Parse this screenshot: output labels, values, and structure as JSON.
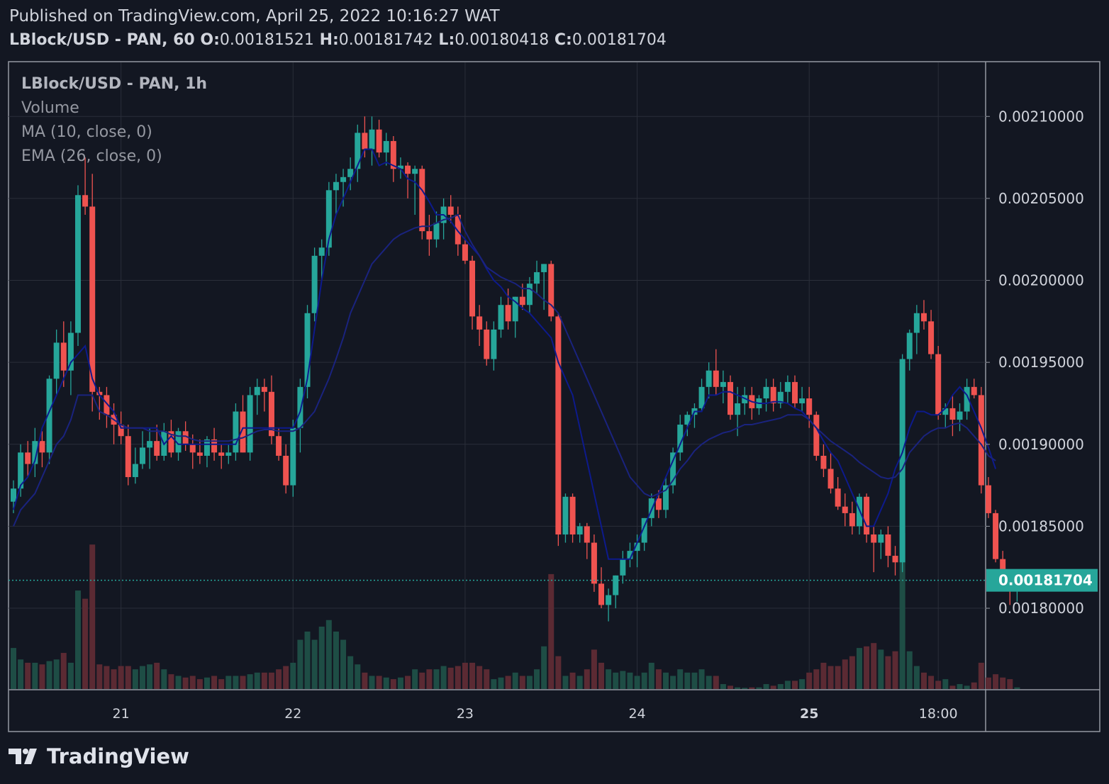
{
  "header": {
    "published": "Published on TradingView.com, April 25, 2022 10:16:27 WAT",
    "symbol": "LBlock/USD - PAN, 60",
    "o_label": "O:",
    "o_value": "0.00181521",
    "h_label": "H:",
    "h_value": "0.00181742",
    "l_label": "L:",
    "l_value": "0.00180418",
    "c_label": "C:",
    "c_value": "0.00181704"
  },
  "legend": {
    "title": "LBlock/USD - PAN, 1h",
    "volume": "Volume",
    "ma": "MA (10, close, 0)",
    "ema": "EMA (26, close, 0)"
  },
  "footer": {
    "brand": "TradingView"
  },
  "colors": {
    "background": "#131722",
    "grid": "#2a2e39",
    "up": "#26a69a",
    "down": "#ef5350",
    "up_volume": "#1e4d45",
    "down_volume": "#5b2a33",
    "ma_line": "#0d1a8c",
    "ema_line": "#1a237e",
    "last_price": "#26a69a",
    "text": "#d1d4dc"
  },
  "chart_data": {
    "type": "candlestick",
    "interval": "1h",
    "y_axis": {
      "ylim": [
        0.001765,
        0.00212
      ],
      "ticks": [
        "0.00210000",
        "0.00205000",
        "0.00200000",
        "0.00195000",
        "0.00190000",
        "0.00185000",
        "0.00180000"
      ],
      "tick_values": [
        0.0021,
        0.00205,
        0.002,
        0.00195,
        0.0019,
        0.00185,
        0.0018
      ]
    },
    "x_axis": {
      "start_hour": 0,
      "ticks": [
        {
          "label": "21",
          "hour": 15,
          "bold": false
        },
        {
          "label": "22",
          "hour": 39,
          "bold": false
        },
        {
          "label": "23",
          "hour": 63,
          "bold": false
        },
        {
          "label": "24",
          "hour": 87,
          "bold": false
        },
        {
          "label": "25",
          "hour": 111,
          "bold": true
        },
        {
          "label": "18:00",
          "hour": 129,
          "bold": false
        }
      ]
    },
    "last_price": "0.00181704",
    "last_price_value": 0.00181704,
    "grid": true,
    "ohlc": [
      [
        0.001865,
        0.001878,
        0.001858,
        0.001873
      ],
      [
        0.001873,
        0.0019,
        0.001868,
        0.001895
      ],
      [
        0.001895,
        0.001902,
        0.00188,
        0.001888
      ],
      [
        0.001888,
        0.00191,
        0.00188,
        0.001902
      ],
      [
        0.001902,
        0.001908,
        0.001886,
        0.001895
      ],
      [
        0.001895,
        0.001942,
        0.001888,
        0.00194
      ],
      [
        0.00194,
        0.00197,
        0.00193,
        0.001962
      ],
      [
        0.001962,
        0.001975,
        0.001935,
        0.001945
      ],
      [
        0.001945,
        0.001975,
        0.00193,
        0.001968
      ],
      [
        0.001968,
        0.002058,
        0.00196,
        0.002052
      ],
      [
        0.002052,
        0.002075,
        0.00204,
        0.002045
      ],
      [
        0.002045,
        0.002065,
        0.00192,
        0.001932
      ],
      [
        0.001932,
        0.001935,
        0.001915,
        0.00193
      ],
      [
        0.00193,
        0.001935,
        0.00191,
        0.001918
      ],
      [
        0.001918,
        0.001925,
        0.0019,
        0.001912
      ],
      [
        0.001912,
        0.00192,
        0.0019,
        0.001905
      ],
      [
        0.001905,
        0.001912,
        0.001875,
        0.00188
      ],
      [
        0.00188,
        0.001898,
        0.001876,
        0.001888
      ],
      [
        0.001888,
        0.001908,
        0.001885,
        0.001898
      ],
      [
        0.001898,
        0.00191,
        0.001885,
        0.001902
      ],
      [
        0.001902,
        0.001912,
        0.00189,
        0.001893
      ],
      [
        0.001893,
        0.001913,
        0.00189,
        0.001908
      ],
      [
        0.001908,
        0.001915,
        0.001892,
        0.001895
      ],
      [
        0.001895,
        0.00191,
        0.00189,
        0.001908
      ],
      [
        0.001908,
        0.001914,
        0.001896,
        0.0019
      ],
      [
        0.0019,
        0.001906,
        0.001885,
        0.001895
      ],
      [
        0.001895,
        0.001903,
        0.001888,
        0.001893
      ],
      [
        0.001893,
        0.001905,
        0.001886,
        0.001903
      ],
      [
        0.001903,
        0.00191,
        0.00189,
        0.001895
      ],
      [
        0.001895,
        0.0019,
        0.001885,
        0.001893
      ],
      [
        0.001893,
        0.0019,
        0.001888,
        0.001895
      ],
      [
        0.001895,
        0.001925,
        0.00189,
        0.00192
      ],
      [
        0.00192,
        0.00193,
        0.001895,
        0.001895
      ],
      [
        0.001895,
        0.001935,
        0.00189,
        0.00193
      ],
      [
        0.00193,
        0.00194,
        0.001918,
        0.001935
      ],
      [
        0.001935,
        0.00194,
        0.00192,
        0.001932
      ],
      [
        0.001932,
        0.001942,
        0.0019,
        0.001905
      ],
      [
        0.001905,
        0.00191,
        0.00189,
        0.001893
      ],
      [
        0.001893,
        0.0019,
        0.00187,
        0.001875
      ],
      [
        0.001875,
        0.001915,
        0.001868,
        0.00191
      ],
      [
        0.00191,
        0.00194,
        0.001895,
        0.001935
      ],
      [
        0.001935,
        0.001985,
        0.001928,
        0.00198
      ],
      [
        0.00198,
        0.00202,
        0.001975,
        0.002015
      ],
      [
        0.002015,
        0.002025,
        0.002,
        0.00202
      ],
      [
        0.00202,
        0.00206,
        0.002015,
        0.002055
      ],
      [
        0.002055,
        0.002065,
        0.00204,
        0.00206
      ],
      [
        0.00206,
        0.002068,
        0.002045,
        0.002063
      ],
      [
        0.002063,
        0.002075,
        0.002055,
        0.002068
      ],
      [
        0.002068,
        0.002095,
        0.00206,
        0.00209
      ],
      [
        0.00209,
        0.0021,
        0.002075,
        0.00208
      ],
      [
        0.00208,
        0.0021,
        0.00207,
        0.002092
      ],
      [
        0.002092,
        0.002098,
        0.002075,
        0.002078
      ],
      [
        0.002078,
        0.00209,
        0.00207,
        0.002085
      ],
      [
        0.002085,
        0.002088,
        0.00206,
        0.002068
      ],
      [
        0.002068,
        0.002075,
        0.002062,
        0.00207
      ],
      [
        0.00207,
        0.002072,
        0.00205,
        0.002065
      ],
      [
        0.002065,
        0.00207,
        0.00204,
        0.002068
      ],
      [
        0.002068,
        0.00207,
        0.002025,
        0.00203
      ],
      [
        0.00203,
        0.00204,
        0.002015,
        0.002025
      ],
      [
        0.002025,
        0.002042,
        0.00202,
        0.002035
      ],
      [
        0.002035,
        0.00205,
        0.002025,
        0.002045
      ],
      [
        0.002045,
        0.002052,
        0.002035,
        0.00204
      ],
      [
        0.00204,
        0.002045,
        0.002015,
        0.002022
      ],
      [
        0.002022,
        0.002025,
        0.00201,
        0.002012
      ],
      [
        0.002012,
        0.002015,
        0.00197,
        0.001978
      ],
      [
        0.001978,
        0.001985,
        0.00196,
        0.00197
      ],
      [
        0.00197,
        0.001975,
        0.001948,
        0.001952
      ],
      [
        0.001952,
        0.001975,
        0.001945,
        0.00197
      ],
      [
        0.00197,
        0.00199,
        0.001965,
        0.001985
      ],
      [
        0.001985,
        0.001995,
        0.00197,
        0.001975
      ],
      [
        0.001975,
        0.00199,
        0.001965,
        0.00199
      ],
      [
        0.00199,
        0.001998,
        0.001982,
        0.001985
      ],
      [
        0.001985,
        0.002002,
        0.00198,
        0.001998
      ],
      [
        0.001998,
        0.002012,
        0.001992,
        0.002005
      ],
      [
        0.002005,
        0.00201,
        0.001982,
        0.00201
      ],
      [
        0.00201,
        0.002012,
        0.001975,
        0.001978
      ],
      [
        0.001978,
        0.00198,
        0.001838,
        0.001845
      ],
      [
        0.001845,
        0.00187,
        0.00184,
        0.001868
      ],
      [
        0.001868,
        0.00187,
        0.00184,
        0.001845
      ],
      [
        0.001845,
        0.001852,
        0.00184,
        0.00185
      ],
      [
        0.00185,
        0.001852,
        0.00183,
        0.00184
      ],
      [
        0.00184,
        0.001845,
        0.00181,
        0.001815
      ],
      [
        0.001815,
        0.001825,
        0.0018,
        0.001802
      ],
      [
        0.001802,
        0.001812,
        0.001792,
        0.001808
      ],
      [
        0.001808,
        0.00182,
        0.0018,
        0.00182
      ],
      [
        0.00182,
        0.001835,
        0.001815,
        0.00183
      ],
      [
        0.00183,
        0.00184,
        0.001825,
        0.001835
      ],
      [
        0.001835,
        0.001845,
        0.001825,
        0.00184
      ],
      [
        0.00184,
        0.001855,
        0.001835,
        0.001855
      ],
      [
        0.001855,
        0.00187,
        0.00185,
        0.001867
      ],
      [
        0.001867,
        0.001872,
        0.001855,
        0.00186
      ],
      [
        0.00186,
        0.00188,
        0.001855,
        0.001875
      ],
      [
        0.001875,
        0.001898,
        0.00187,
        0.001895
      ],
      [
        0.001895,
        0.001918,
        0.00189,
        0.001912
      ],
      [
        0.001912,
        0.00192,
        0.001905,
        0.001918
      ],
      [
        0.001918,
        0.001925,
        0.00191,
        0.001922
      ],
      [
        0.001922,
        0.00194,
        0.00192,
        0.001935
      ],
      [
        0.001935,
        0.00195,
        0.001928,
        0.001945
      ],
      [
        0.001945,
        0.001958,
        0.00193,
        0.001935
      ],
      [
        0.001935,
        0.001945,
        0.001925,
        0.001938
      ],
      [
        0.001938,
        0.001942,
        0.001915,
        0.001918
      ],
      [
        0.001918,
        0.001935,
        0.001905,
        0.001925
      ],
      [
        0.001925,
        0.001935,
        0.001918,
        0.00193
      ],
      [
        0.00193,
        0.001935,
        0.001915,
        0.001922
      ],
      [
        0.001922,
        0.00193,
        0.001918,
        0.001928
      ],
      [
        0.001928,
        0.00194,
        0.00192,
        0.001935
      ],
      [
        0.001935,
        0.00194,
        0.00192,
        0.001925
      ],
      [
        0.001925,
        0.001938,
        0.001922,
        0.001932
      ],
      [
        0.001932,
        0.001942,
        0.001925,
        0.001938
      ],
      [
        0.001938,
        0.001942,
        0.001922,
        0.001925
      ],
      [
        0.001925,
        0.001935,
        0.00192,
        0.001928
      ],
      [
        0.001928,
        0.001935,
        0.00191,
        0.001918
      ],
      [
        0.001918,
        0.00192,
        0.00189,
        0.001893
      ],
      [
        0.001893,
        0.0019,
        0.00188,
        0.001885
      ],
      [
        0.001885,
        0.001895,
        0.00187,
        0.001873
      ],
      [
        0.001873,
        0.00188,
        0.00186,
        0.001862
      ],
      [
        0.001862,
        0.00187,
        0.00185,
        0.001858
      ],
      [
        0.001858,
        0.001865,
        0.001845,
        0.00185
      ],
      [
        0.00185,
        0.00187,
        0.001845,
        0.001868
      ],
      [
        0.001868,
        0.00187,
        0.00184,
        0.001845
      ],
      [
        0.001845,
        0.00185,
        0.001822,
        0.00184
      ],
      [
        0.00184,
        0.001848,
        0.00183,
        0.001845
      ],
      [
        0.001845,
        0.00185,
        0.001825,
        0.001832
      ],
      [
        0.001832,
        0.001838,
        0.00182,
        0.001828
      ],
      [
        0.001828,
        0.001955,
        0.001822,
        0.001952
      ],
      [
        0.001952,
        0.00197,
        0.001945,
        0.001968
      ],
      [
        0.001968,
        0.001985,
        0.001955,
        0.00198
      ],
      [
        0.00198,
        0.001988,
        0.00197,
        0.001975
      ],
      [
        0.001975,
        0.001982,
        0.001952,
        0.001955
      ],
      [
        0.001955,
        0.00196,
        0.001915,
        0.001918
      ],
      [
        0.001918,
        0.001925,
        0.00191,
        0.001922
      ],
      [
        0.001922,
        0.00193,
        0.001905,
        0.001915
      ],
      [
        0.001915,
        0.001925,
        0.001908,
        0.00192
      ],
      [
        0.00192,
        0.00194,
        0.001915,
        0.001935
      ],
      [
        0.001935,
        0.00194,
        0.001928,
        0.00193
      ],
      [
        0.00193,
        0.001935,
        0.00187,
        0.001875
      ],
      [
        0.001875,
        0.00188,
        0.001855,
        0.001858
      ],
      [
        0.001858,
        0.00186,
        0.001828,
        0.00183
      ],
      [
        0.00183,
        0.001835,
        0.001812,
        0.001817
      ],
      [
        0.001817,
        0.001818,
        0.001802,
        0.001815
      ],
      [
        0.001815,
        0.001818,
        0.001804,
        0.001817
      ]
    ],
    "volume": [
      25,
      18,
      16,
      16,
      15,
      17,
      18,
      22,
      16,
      60,
      55,
      88,
      15,
      14,
      12,
      14,
      14,
      12,
      14,
      15,
      16,
      12,
      9,
      8,
      7,
      8,
      6,
      7,
      8,
      6,
      8,
      8,
      8,
      9,
      10,
      10,
      10,
      12,
      14,
      16,
      30,
      35,
      30,
      38,
      42,
      35,
      30,
      20,
      15,
      10,
      8,
      8,
      7,
      6,
      7,
      8,
      12,
      10,
      12,
      12,
      14,
      13,
      14,
      16,
      16,
      14,
      12,
      6,
      7,
      8,
      10,
      8,
      8,
      12,
      26,
      70,
      20,
      8,
      10,
      8,
      12,
      24,
      16,
      12,
      10,
      11,
      10,
      8,
      10,
      16,
      12,
      10,
      8,
      12,
      10,
      10,
      12,
      8,
      8,
      3,
      2,
      1,
      0.7,
      1,
      1,
      3,
      2,
      3,
      5,
      5,
      6,
      10,
      12,
      16,
      14,
      14,
      18,
      20,
      25,
      26,
      28,
      24,
      20,
      23,
      95,
      23,
      14,
      10,
      8,
      5,
      6,
      2,
      3,
      2,
      4,
      16,
      7,
      9,
      7,
      6,
      1
    ],
    "ma_10": [
      0.00186,
      0.001875,
      0.00188,
      0.00189,
      0.00191,
      0.00192,
      0.00193,
      0.00194,
      0.00195,
      0.001955,
      0.00196,
      0.00194,
      0.00193,
      0.001925,
      0.00192,
      0.00191,
      0.00191,
      0.00191,
      0.00191,
      0.00191,
      0.00191,
      0.0019,
      0.001905,
      0.0019,
      0.0019,
      0.0019,
      0.0019,
      0.0019,
      0.0019,
      0.0019,
      0.0019,
      0.0019,
      0.00191,
      0.00191,
      0.00191,
      0.00191,
      0.00191,
      0.00191,
      0.00191,
      0.00191,
      0.00192,
      0.00194,
      0.00197,
      0.002,
      0.002025,
      0.00204,
      0.00205,
      0.00206,
      0.00207,
      0.00208,
      0.00208,
      0.00207,
      0.002072,
      0.00207,
      0.002068,
      0.002062,
      0.00206,
      0.002055,
      0.002048,
      0.00204,
      0.00204,
      0.002036,
      0.00203,
      0.002025,
      0.00202,
      0.002015,
      0.002007,
      0.002,
      0.001996,
      0.00199,
      0.001987,
      0.001983,
      0.00198,
      0.001975,
      0.00197,
      0.001965,
      0.00195,
      0.00194,
      0.00193,
      0.00191,
      0.00189,
      0.00187,
      0.00185,
      0.00183,
      0.00183,
      0.00183,
      0.00183,
      0.00184,
      0.00185,
      0.00186,
      0.00187,
      0.00188,
      0.00189,
      0.0019,
      0.00191,
      0.00192,
      0.00192,
      0.00193,
      0.00193,
      0.001932,
      0.001932,
      0.00193,
      0.001928,
      0.001926,
      0.001925,
      0.001925,
      0.001926,
      0.001926,
      0.001925,
      0.001922,
      0.00192,
      0.001915,
      0.00191,
      0.001902,
      0.001895,
      0.00189,
      0.00188,
      0.00187,
      0.00186,
      0.00185,
      0.00185,
      0.00186,
      0.00187,
      0.001885,
      0.001895,
      0.00191,
      0.00192,
      0.00192,
      0.001918,
      0.001918,
      0.001922,
      0.00193,
      0.001935,
      0.00193,
      0.00192,
      0.00191,
      0.001898,
      0.001885
    ],
    "ema_26": [
      0.00185,
      0.00186,
      0.001865,
      0.00187,
      0.00188,
      0.00189,
      0.0019,
      0.001905,
      0.001915,
      0.00193,
      0.00193,
      0.00193,
      0.00192,
      0.001918,
      0.001915,
      0.001912,
      0.00191,
      0.00191,
      0.00191,
      0.001908,
      0.001908,
      0.001908,
      0.001906,
      0.001905,
      0.001905,
      0.001903,
      0.001902,
      0.001902,
      0.001902,
      0.001902,
      0.001902,
      0.001903,
      0.001904,
      0.001906,
      0.001908,
      0.001909,
      0.001909,
      0.001908,
      0.001908,
      0.001908,
      0.00191,
      0.001915,
      0.00192,
      0.00193,
      0.00194,
      0.001952,
      0.001965,
      0.00198,
      0.00199,
      0.002,
      0.00201,
      0.002015,
      0.00202,
      0.002025,
      0.002028,
      0.00203,
      0.002032,
      0.002033,
      0.002033,
      0.002035,
      0.002037,
      0.002038,
      0.00204,
      0.00203,
      0.002022,
      0.002015,
      0.002008,
      0.002005,
      0.002002,
      0.002,
      0.001998,
      0.001995,
      0.001995,
      0.001992,
      0.001988,
      0.001985,
      0.00198,
      0.00197,
      0.00196,
      0.00195,
      0.00194,
      0.00193,
      0.00192,
      0.00191,
      0.0019,
      0.00189,
      0.00188,
      0.001875,
      0.00187,
      0.001868,
      0.00187,
      0.001872,
      0.001878,
      0.001885,
      0.00189,
      0.001896,
      0.0019,
      0.001903,
      0.001905,
      0.001907,
      0.001908,
      0.00191,
      0.001912,
      0.001912,
      0.001913,
      0.001914,
      0.001915,
      0.001916,
      0.001918,
      0.001918,
      0.001918,
      0.001915,
      0.00191,
      0.001906,
      0.001902,
      0.001899,
      0.001896,
      0.001893,
      0.001889,
      0.001886,
      0.001883,
      0.00188,
      0.001879,
      0.00188,
      0.001885,
      0.001895,
      0.0019,
      0.001905,
      0.001908,
      0.00191,
      0.00191,
      0.001912,
      0.001913,
      0.00191,
      0.001905,
      0.0019,
      0.001893,
      0.00189
    ]
  }
}
